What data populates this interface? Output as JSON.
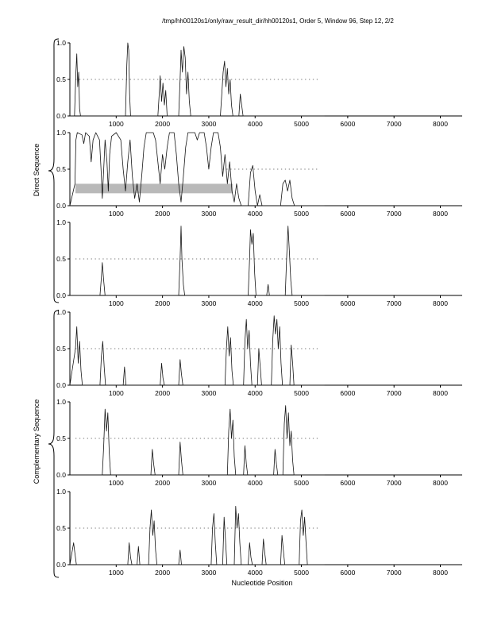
{
  "title": "/tmp/hh00120s1/only/raw_result_dir/hh00120s1, Order 5, Window 96, Step 12, 2/2",
  "xlabel": "Nucleotide Position",
  "groups": [
    {
      "label": "Direct Sequence"
    },
    {
      "label": "Complementary Sequence"
    }
  ],
  "colors": {
    "curve": "#151515",
    "threshold": "#777777",
    "band": "#b9b9b9",
    "axis": "#000000"
  },
  "axis": {
    "xmax": 8300,
    "ymax": 1.0,
    "x_ticks": [
      1000,
      2000,
      3000,
      4000,
      5000,
      6000,
      7000,
      8000
    ],
    "y_ticks": [
      {
        "v": 0,
        "label": "0.0"
      },
      {
        "v": 0.5,
        "label": "0.5"
      },
      {
        "v": 1,
        "label": "1.0"
      }
    ]
  },
  "chart_data": [
    {
      "type": "line",
      "name": "direct-plot-1",
      "threshold": {
        "y": 0.5,
        "x0": 120,
        "x1": 5400
      },
      "points": [
        [
          0,
          0
        ],
        [
          100,
          0
        ],
        [
          130,
          0.6
        ],
        [
          150,
          0.85
        ],
        [
          170,
          0.4
        ],
        [
          190,
          0.6
        ],
        [
          210,
          0.1
        ],
        [
          230,
          0
        ],
        [
          1200,
          0
        ],
        [
          1230,
          0.7
        ],
        [
          1250,
          1.0
        ],
        [
          1270,
          0.9
        ],
        [
          1290,
          0.3
        ],
        [
          1310,
          0
        ],
        [
          1900,
          0
        ],
        [
          1930,
          0.3
        ],
        [
          1950,
          0.55
        ],
        [
          1980,
          0.2
        ],
        [
          2010,
          0.45
        ],
        [
          2040,
          0.15
        ],
        [
          2070,
          0.35
        ],
        [
          2100,
          0
        ],
        [
          2350,
          0
        ],
        [
          2380,
          0.5
        ],
        [
          2400,
          0.9
        ],
        [
          2430,
          0.6
        ],
        [
          2460,
          0.95
        ],
        [
          2490,
          0.8
        ],
        [
          2520,
          0.3
        ],
        [
          2550,
          0.6
        ],
        [
          2580,
          0.2
        ],
        [
          2610,
          0
        ],
        [
          3250,
          0
        ],
        [
          3280,
          0.3
        ],
        [
          3310,
          0.6
        ],
        [
          3340,
          0.75
        ],
        [
          3370,
          0.4
        ],
        [
          3400,
          0.65
        ],
        [
          3430,
          0.3
        ],
        [
          3460,
          0.5
        ],
        [
          3490,
          0.15
        ],
        [
          3520,
          0
        ],
        [
          3650,
          0
        ],
        [
          3680,
          0.3
        ],
        [
          3710,
          0.15
        ],
        [
          3740,
          0
        ],
        [
          5500,
          0
        ]
      ]
    },
    {
      "type": "line",
      "name": "direct-plot-2",
      "band": {
        "x0": 120,
        "x1": 3520,
        "y0": 0.17,
        "y1": 0.3
      },
      "threshold": {
        "y": 0.5,
        "x0": 3300,
        "x1": 5400
      },
      "points": [
        [
          0,
          0
        ],
        [
          110,
          0.3
        ],
        [
          130,
          0.9
        ],
        [
          160,
          1.0
        ],
        [
          260,
          0.97
        ],
        [
          300,
          0.85
        ],
        [
          340,
          1.0
        ],
        [
          420,
          0.95
        ],
        [
          460,
          0.6
        ],
        [
          500,
          0.9
        ],
        [
          560,
          1.0
        ],
        [
          640,
          0.9
        ],
        [
          680,
          0.4
        ],
        [
          700,
          0.1
        ],
        [
          730,
          0.5
        ],
        [
          760,
          0.9
        ],
        [
          800,
          0.6
        ],
        [
          830,
          0.2
        ],
        [
          860,
          0.7
        ],
        [
          900,
          0.95
        ],
        [
          1000,
          1.0
        ],
        [
          1100,
          0.9
        ],
        [
          1150,
          0.5
        ],
        [
          1200,
          0.2
        ],
        [
          1250,
          0.6
        ],
        [
          1300,
          0.9
        ],
        [
          1350,
          0.4
        ],
        [
          1400,
          0.1
        ],
        [
          1450,
          0.3
        ],
        [
          1500,
          0.05
        ],
        [
          1550,
          0.4
        ],
        [
          1600,
          0.8
        ],
        [
          1650,
          1.0
        ],
        [
          1800,
          1.0
        ],
        [
          1850,
          0.9
        ],
        [
          1900,
          0.6
        ],
        [
          1950,
          0.3
        ],
        [
          2000,
          0.7
        ],
        [
          2050,
          0.5
        ],
        [
          2100,
          0.8
        ],
        [
          2150,
          1.0
        ],
        [
          2250,
          1.0
        ],
        [
          2300,
          0.7
        ],
        [
          2350,
          0.3
        ],
        [
          2400,
          0.05
        ],
        [
          2450,
          0.4
        ],
        [
          2500,
          0.8
        ],
        [
          2550,
          1.0
        ],
        [
          2700,
          1.0
        ],
        [
          2750,
          0.9
        ],
        [
          2800,
          1.0
        ],
        [
          2900,
          1.0
        ],
        [
          2950,
          0.8
        ],
        [
          3000,
          0.5
        ],
        [
          3050,
          0.8
        ],
        [
          3100,
          1.0
        ],
        [
          3200,
          1.0
        ],
        [
          3250,
          0.8
        ],
        [
          3300,
          0.4
        ],
        [
          3350,
          0.7
        ],
        [
          3400,
          0.3
        ],
        [
          3450,
          0.6
        ],
        [
          3500,
          0.2
        ],
        [
          3550,
          0.05
        ],
        [
          3600,
          0.3
        ],
        [
          3650,
          0.1
        ],
        [
          3700,
          0
        ],
        [
          3850,
          0
        ],
        [
          3900,
          0.45
        ],
        [
          3950,
          0.55
        ],
        [
          4000,
          0.2
        ],
        [
          4050,
          0
        ],
        [
          4100,
          0.15
        ],
        [
          4150,
          0
        ],
        [
          4550,
          0
        ],
        [
          4600,
          0.3
        ],
        [
          4650,
          0.35
        ],
        [
          4700,
          0.2
        ],
        [
          4750,
          0.35
        ],
        [
          4800,
          0.1
        ],
        [
          4850,
          0
        ],
        [
          5500,
          0
        ]
      ]
    },
    {
      "type": "line",
      "name": "direct-plot-3",
      "threshold": {
        "y": 0.5,
        "x0": 120,
        "x1": 5400
      },
      "points": [
        [
          0,
          0
        ],
        [
          650,
          0
        ],
        [
          680,
          0.25
        ],
        [
          700,
          0.45
        ],
        [
          730,
          0.2
        ],
        [
          760,
          0
        ],
        [
          2350,
          0
        ],
        [
          2380,
          0.5
        ],
        [
          2400,
          0.95
        ],
        [
          2420,
          0.5
        ],
        [
          2450,
          0.15
        ],
        [
          2480,
          0
        ],
        [
          3850,
          0
        ],
        [
          3880,
          0.5
        ],
        [
          3900,
          0.9
        ],
        [
          3930,
          0.7
        ],
        [
          3960,
          0.85
        ],
        [
          3990,
          0.3
        ],
        [
          4020,
          0
        ],
        [
          4250,
          0
        ],
        [
          4280,
          0.15
        ],
        [
          4310,
          0
        ],
        [
          4650,
          0
        ],
        [
          4680,
          0.5
        ],
        [
          4710,
          0.95
        ],
        [
          4740,
          0.6
        ],
        [
          4770,
          0.2
        ],
        [
          4800,
          0
        ],
        [
          5500,
          0
        ]
      ]
    },
    {
      "type": "line",
      "name": "complementary-plot-1",
      "threshold": {
        "y": 0.5,
        "x0": 120,
        "x1": 5400
      },
      "points": [
        [
          0,
          0
        ],
        [
          120,
          0.5
        ],
        [
          150,
          0.8
        ],
        [
          180,
          0.3
        ],
        [
          210,
          0.6
        ],
        [
          240,
          0.2
        ],
        [
          270,
          0
        ],
        [
          650,
          0
        ],
        [
          680,
          0.4
        ],
        [
          710,
          0.6
        ],
        [
          740,
          0.25
        ],
        [
          770,
          0
        ],
        [
          1150,
          0
        ],
        [
          1180,
          0.25
        ],
        [
          1210,
          0
        ],
        [
          1950,
          0
        ],
        [
          1980,
          0.3
        ],
        [
          2010,
          0.1
        ],
        [
          2040,
          0
        ],
        [
          2350,
          0
        ],
        [
          2380,
          0.35
        ],
        [
          2410,
          0.15
        ],
        [
          2440,
          0
        ],
        [
          3350,
          0
        ],
        [
          3380,
          0.5
        ],
        [
          3410,
          0.8
        ],
        [
          3440,
          0.4
        ],
        [
          3470,
          0.65
        ],
        [
          3500,
          0.2
        ],
        [
          3530,
          0
        ],
        [
          3750,
          0
        ],
        [
          3780,
          0.6
        ],
        [
          3810,
          0.9
        ],
        [
          3840,
          0.5
        ],
        [
          3870,
          0.75
        ],
        [
          3900,
          0.3
        ],
        [
          3930,
          0
        ],
        [
          4050,
          0
        ],
        [
          4080,
          0.5
        ],
        [
          4110,
          0.25
        ],
        [
          4140,
          0
        ],
        [
          4350,
          0
        ],
        [
          4380,
          0.6
        ],
        [
          4410,
          0.95
        ],
        [
          4440,
          0.7
        ],
        [
          4470,
          0.9
        ],
        [
          4500,
          0.5
        ],
        [
          4530,
          0.8
        ],
        [
          4560,
          0.3
        ],
        [
          4590,
          0
        ],
        [
          4750,
          0
        ],
        [
          4780,
          0.55
        ],
        [
          4810,
          0.3
        ],
        [
          4840,
          0
        ],
        [
          5500,
          0
        ]
      ]
    },
    {
      "type": "line",
      "name": "complementary-plot-2",
      "threshold": {
        "y": 0.5,
        "x0": 120,
        "x1": 5400
      },
      "points": [
        [
          0,
          0
        ],
        [
          700,
          0
        ],
        [
          730,
          0.4
        ],
        [
          760,
          0.9
        ],
        [
          790,
          0.6
        ],
        [
          820,
          0.85
        ],
        [
          850,
          0.3
        ],
        [
          880,
          0
        ],
        [
          1750,
          0
        ],
        [
          1780,
          0.35
        ],
        [
          1810,
          0.15
        ],
        [
          1840,
          0
        ],
        [
          2350,
          0
        ],
        [
          2380,
          0.45
        ],
        [
          2410,
          0.2
        ],
        [
          2440,
          0
        ],
        [
          3400,
          0
        ],
        [
          3430,
          0.6
        ],
        [
          3460,
          0.9
        ],
        [
          3490,
          0.5
        ],
        [
          3520,
          0.75
        ],
        [
          3550,
          0.25
        ],
        [
          3580,
          0
        ],
        [
          3750,
          0
        ],
        [
          3780,
          0.4
        ],
        [
          3810,
          0.15
        ],
        [
          3840,
          0
        ],
        [
          4400,
          0
        ],
        [
          4430,
          0.35
        ],
        [
          4460,
          0.15
        ],
        [
          4490,
          0
        ],
        [
          4600,
          0
        ],
        [
          4630,
          0.7
        ],
        [
          4660,
          0.95
        ],
        [
          4690,
          0.5
        ],
        [
          4720,
          0.85
        ],
        [
          4750,
          0.4
        ],
        [
          4780,
          0.6
        ],
        [
          4810,
          0.2
        ],
        [
          4840,
          0
        ],
        [
          5500,
          0
        ]
      ]
    },
    {
      "type": "line",
      "name": "complementary-plot-3",
      "threshold": {
        "y": 0.5,
        "x0": 120,
        "x1": 5400
      },
      "points": [
        [
          0,
          0
        ],
        [
          80,
          0.3
        ],
        [
          110,
          0.15
        ],
        [
          140,
          0
        ],
        [
          1250,
          0
        ],
        [
          1280,
          0.3
        ],
        [
          1310,
          0.1
        ],
        [
          1340,
          0
        ],
        [
          1450,
          0
        ],
        [
          1480,
          0.25
        ],
        [
          1510,
          0
        ],
        [
          1700,
          0
        ],
        [
          1730,
          0.5
        ],
        [
          1760,
          0.75
        ],
        [
          1790,
          0.4
        ],
        [
          1820,
          0.6
        ],
        [
          1850,
          0.2
        ],
        [
          1880,
          0
        ],
        [
          2350,
          0
        ],
        [
          2380,
          0.2
        ],
        [
          2410,
          0
        ],
        [
          3050,
          0
        ],
        [
          3080,
          0.5
        ],
        [
          3110,
          0.7
        ],
        [
          3140,
          0.3
        ],
        [
          3170,
          0
        ],
        [
          3300,
          0
        ],
        [
          3330,
          0.65
        ],
        [
          3360,
          0.35
        ],
        [
          3390,
          0
        ],
        [
          3550,
          0
        ],
        [
          3580,
          0.8
        ],
        [
          3610,
          0.5
        ],
        [
          3640,
          0.7
        ],
        [
          3670,
          0.3
        ],
        [
          3700,
          0
        ],
        [
          3850,
          0
        ],
        [
          3880,
          0.3
        ],
        [
          3910,
          0.1
        ],
        [
          3940,
          0
        ],
        [
          4150,
          0
        ],
        [
          4180,
          0.35
        ],
        [
          4210,
          0.15
        ],
        [
          4240,
          0
        ],
        [
          4550,
          0
        ],
        [
          4580,
          0.4
        ],
        [
          4610,
          0.2
        ],
        [
          4640,
          0
        ],
        [
          4950,
          0
        ],
        [
          4980,
          0.6
        ],
        [
          5010,
          0.75
        ],
        [
          5040,
          0.4
        ],
        [
          5070,
          0.65
        ],
        [
          5100,
          0.3
        ],
        [
          5130,
          0
        ],
        [
          5500,
          0
        ]
      ]
    }
  ]
}
